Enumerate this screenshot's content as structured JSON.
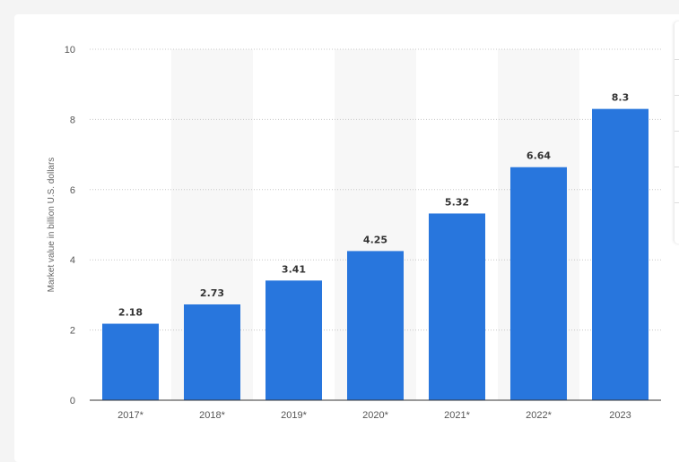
{
  "chart_data": {
    "type": "bar",
    "categories": [
      "2017*",
      "2018*",
      "2019*",
      "2020*",
      "2021*",
      "2022*",
      "2023"
    ],
    "values": [
      2.18,
      2.73,
      3.41,
      4.25,
      5.32,
      6.64,
      8.3
    ],
    "value_labels": [
      "2.18",
      "2.73",
      "3.41",
      "4.25",
      "5.32",
      "6.64",
      "8.3"
    ],
    "ylabel": "Market value in billion U.S. dollars",
    "xlabel": "",
    "ylim": [
      0,
      10
    ],
    "yticks": [
      "0",
      "2",
      "4",
      "6",
      "8",
      "10"
    ],
    "grid": true,
    "bar_color": "#2876dd",
    "alt_band_color": "#f7f7f7"
  }
}
